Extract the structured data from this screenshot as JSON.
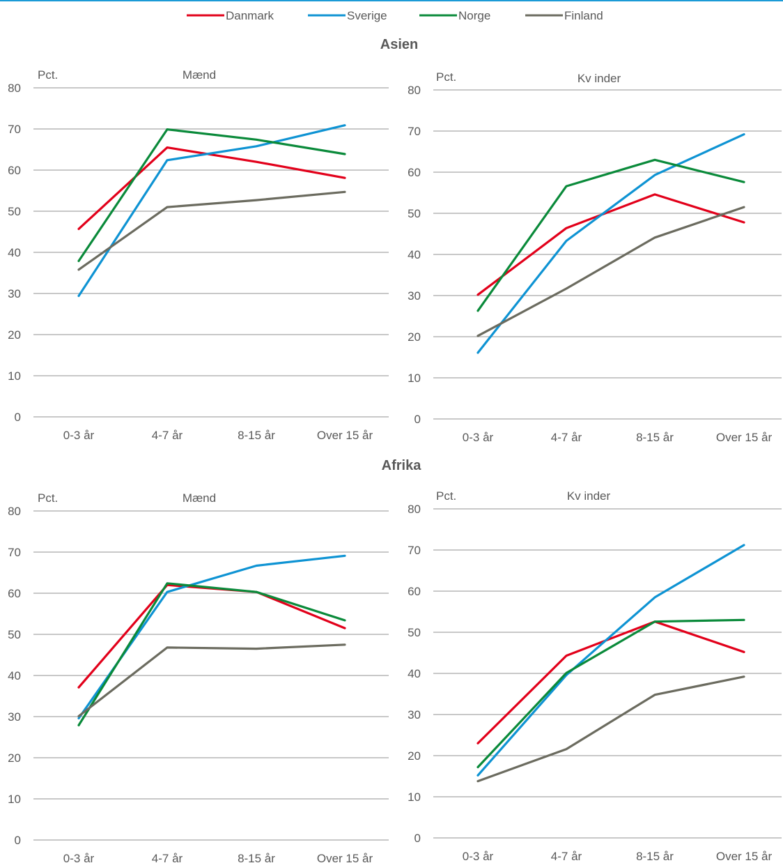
{
  "legend": [
    {
      "name": "Danmark",
      "color": "#e2001a"
    },
    {
      "name": "Sverige",
      "color": "#0e93d3"
    },
    {
      "name": "Norge",
      "color": "#0a8a3a"
    },
    {
      "name": "Finland",
      "color": "#6b6b5f"
    }
  ],
  "sections": [
    {
      "title": "Asien"
    },
    {
      "title": "Afrika"
    }
  ],
  "chart_data": [
    {
      "type": "line",
      "section": "Asien",
      "title": "Mænd",
      "ylabel": "Pct.",
      "categories": [
        "0-3 år",
        "4-7 år",
        "8-15 år",
        "Over 15 år"
      ],
      "ylim": [
        0,
        80
      ],
      "yticks": [
        0,
        10,
        20,
        30,
        40,
        50,
        60,
        70,
        80
      ],
      "grid": true,
      "series": [
        {
          "name": "Danmark",
          "values": [
            45.7,
            65.5,
            62.0,
            58.1
          ]
        },
        {
          "name": "Sverige",
          "values": [
            29.4,
            62.4,
            65.8,
            70.9
          ]
        },
        {
          "name": "Norge",
          "values": [
            37.9,
            69.9,
            67.4,
            63.9
          ]
        },
        {
          "name": "Finland",
          "values": [
            35.8,
            51.0,
            52.7,
            54.7
          ]
        }
      ]
    },
    {
      "type": "line",
      "section": "Asien",
      "title": "Kv inder",
      "ylabel": "Pct.",
      "categories": [
        "0-3 år",
        "4-7 år",
        "8-15 år",
        "Over 15 år"
      ],
      "ylim": [
        0,
        80
      ],
      "yticks": [
        0,
        10,
        20,
        30,
        40,
        50,
        60,
        70,
        80
      ],
      "grid": true,
      "series": [
        {
          "name": "Danmark",
          "values": [
            30.2,
            46.4,
            54.6,
            47.8
          ]
        },
        {
          "name": "Sverige",
          "values": [
            16.1,
            43.3,
            59.3,
            69.2
          ]
        },
        {
          "name": "Norge",
          "values": [
            26.3,
            56.6,
            63.0,
            57.6
          ]
        },
        {
          "name": "Finland",
          "values": [
            20.2,
            31.7,
            44.1,
            51.5
          ]
        }
      ]
    },
    {
      "type": "line",
      "section": "Afrika",
      "title": "Mænd",
      "ylabel": "Pct.",
      "categories": [
        "0-3 år",
        "4-7 år",
        "8-15 år",
        "Over 15 år"
      ],
      "ylim": [
        0,
        80
      ],
      "yticks": [
        0,
        10,
        20,
        30,
        40,
        50,
        60,
        70,
        80
      ],
      "grid": true,
      "series": [
        {
          "name": "Danmark",
          "values": [
            37.1,
            62.0,
            60.3,
            51.5
          ]
        },
        {
          "name": "Sverige",
          "values": [
            29.6,
            60.3,
            66.7,
            69.1
          ]
        },
        {
          "name": "Norge",
          "values": [
            27.9,
            62.4,
            60.3,
            53.4
          ]
        },
        {
          "name": "Finland",
          "values": [
            30.1,
            46.8,
            46.5,
            47.5
          ]
        }
      ]
    },
    {
      "type": "line",
      "section": "Afrika",
      "title": "Kv inder",
      "ylabel": "Pct.",
      "categories": [
        "0-3 år",
        "4-7 år",
        "8-15 år",
        "Over 15 år"
      ],
      "ylim": [
        0,
        80
      ],
      "yticks": [
        0,
        10,
        20,
        30,
        40,
        50,
        60,
        70,
        80
      ],
      "grid": true,
      "series": [
        {
          "name": "Danmark",
          "values": [
            23.0,
            44.3,
            52.6,
            45.2
          ]
        },
        {
          "name": "Sverige",
          "values": [
            15.2,
            39.6,
            58.5,
            71.2
          ]
        },
        {
          "name": "Norge",
          "values": [
            17.2,
            40.1,
            52.6,
            53.0
          ]
        },
        {
          "name": "Finland",
          "values": [
            13.8,
            21.6,
            34.8,
            39.2
          ]
        }
      ]
    }
  ]
}
